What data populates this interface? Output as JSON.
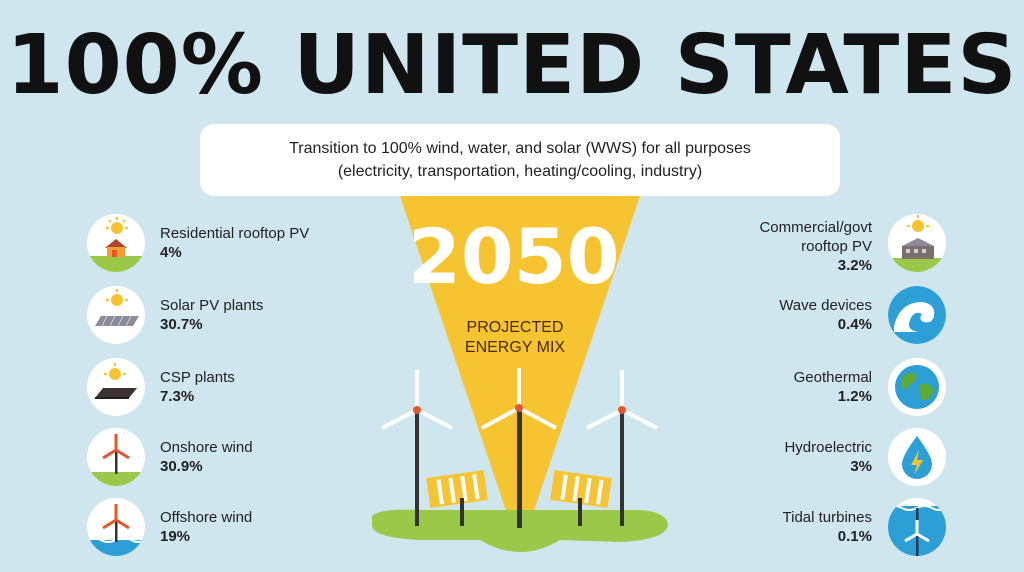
{
  "title": "100% UNITED STATES",
  "subtitle": {
    "line1": "Transition to 100% wind, water, and solar (WWS) for all purposes",
    "line2": "(electricity, transportation, heating/cooling, industry)"
  },
  "center": {
    "year": "2050",
    "line1": "PROJECTED",
    "line2": "ENERGY MIX"
  },
  "left_items": [
    {
      "name": "Residential rooftop PV",
      "value": "4%",
      "icon": "house-sun-icon"
    },
    {
      "name": "Solar PV plants",
      "value": "30.7%",
      "icon": "solar-panel-icon"
    },
    {
      "name": "CSP plants",
      "value": "7.3%",
      "icon": "csp-mirror-icon"
    },
    {
      "name": "Onshore wind",
      "value": "30.9%",
      "icon": "onshore-turbine-icon"
    },
    {
      "name": "Offshore wind",
      "value": "19%",
      "icon": "offshore-turbine-icon"
    }
  ],
  "right_items": [
    {
      "name_line1": "Commercial/govt",
      "name_line2": "rooftop PV",
      "value": "3.2%",
      "icon": "commercial-building-sun-icon"
    },
    {
      "name": "Wave devices",
      "value": "0.4%",
      "icon": "wave-icon"
    },
    {
      "name": "Geothermal",
      "value": "1.2%",
      "icon": "globe-icon"
    },
    {
      "name": "Hydroelectric",
      "value": "3%",
      "icon": "water-drop-bolt-icon"
    },
    {
      "name": "Tidal turbines",
      "value": "0.1%",
      "icon": "tidal-turbine-icon"
    }
  ],
  "colors": {
    "background": "#cfe6ee",
    "funnel": "#f6c431",
    "grass": "#9cc84a",
    "accent": "#e8552a",
    "water": "#2b9fd6"
  }
}
